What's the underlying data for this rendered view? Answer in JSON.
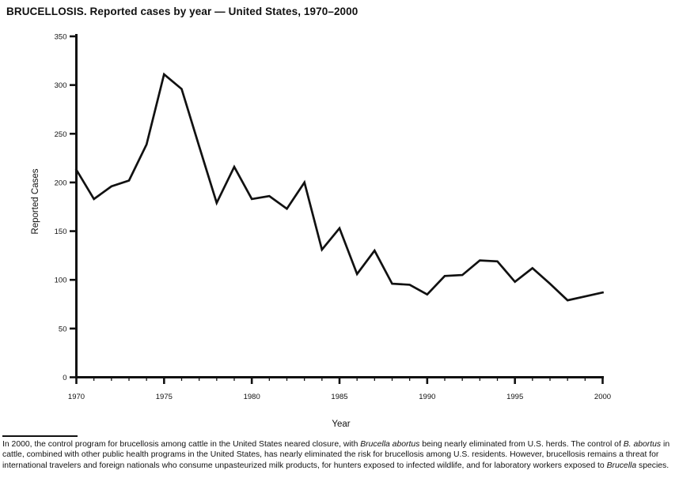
{
  "title": "BRUCELLOSIS. Reported cases by year — United States, 1970–2000",
  "chart_data": {
    "type": "line",
    "title": "BRUCELLOSIS. Reported cases by year — United States, 1970–2000",
    "xlabel": "Year",
    "ylabel": "Reported Cases",
    "xlim": [
      1970,
      2000
    ],
    "ylim": [
      0,
      350
    ],
    "y_ticks": [
      0,
      50,
      100,
      150,
      200,
      250,
      300,
      350
    ],
    "x_major_ticks": [
      1970,
      1975,
      1980,
      1985,
      1990,
      1995,
      2000
    ],
    "x_minor_tick_step": 1,
    "grid": "off",
    "legend": "none",
    "line_color": "#111111",
    "x": [
      1970,
      1971,
      1972,
      1973,
      1974,
      1975,
      1976,
      1977,
      1978,
      1979,
      1980,
      1981,
      1982,
      1983,
      1984,
      1985,
      1986,
      1987,
      1988,
      1989,
      1990,
      1991,
      1992,
      1993,
      1994,
      1995,
      1996,
      1997,
      1998,
      1999,
      2000
    ],
    "values": [
      213,
      183,
      196,
      202,
      239,
      311,
      296,
      237,
      179,
      216,
      183,
      186,
      173,
      200,
      131,
      153,
      106,
      130,
      96,
      95,
      85,
      104,
      105,
      120,
      119,
      98,
      112,
      96,
      79,
      83,
      87
    ]
  },
  "footer": {
    "segments": [
      {
        "text": "In 2000, the control program for brucellosis among cattle in the United States neared closure, with ",
        "italic": false
      },
      {
        "text": "Brucella abortus",
        "italic": true
      },
      {
        "text": "  being nearly eliminated from U.S. herds. The control of ",
        "italic": false
      },
      {
        "text": "B. abortus",
        "italic": true
      },
      {
        "text": " in cattle, combined with other public health programs in the United States, has nearly eliminated the risk for brucellosis among U.S. residents. However, brucellosis remains a threat for international travelers and foreign nationals who consume unpasteurized milk products, for hunters exposed to infected wildlife, and for laboratory workers exposed to ",
        "italic": false
      },
      {
        "text": "Brucella",
        "italic": true
      },
      {
        "text": " species.",
        "italic": false
      }
    ]
  }
}
